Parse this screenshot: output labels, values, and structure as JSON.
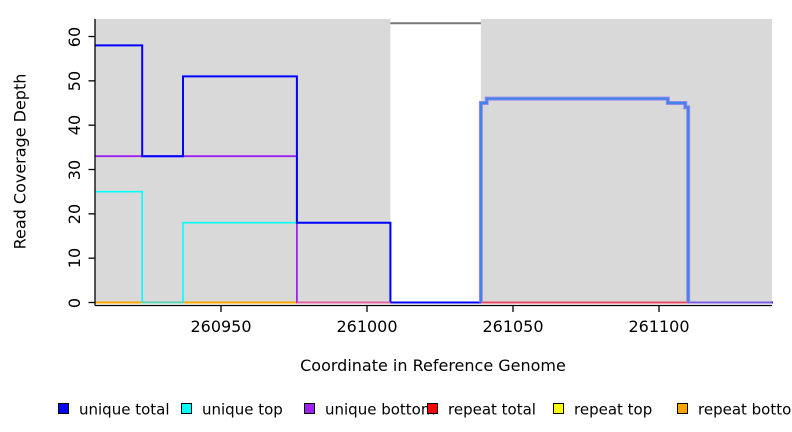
{
  "chart_data": {
    "type": "line",
    "subtype": "step-coverage-plot",
    "title": "",
    "xlabel": "Coordinate in Reference Genome",
    "ylabel": "Read Coverage Depth",
    "xlim": [
      260907,
      261139
    ],
    "ylim": [
      0,
      64
    ],
    "x_ticks": [
      260950,
      261000,
      261050,
      261100
    ],
    "y_ticks": [
      0,
      10,
      20,
      30,
      40,
      50,
      60
    ],
    "grid": false,
    "legend_position": "bottom",
    "background_shaded_regions": [
      {
        "from": 260907,
        "to": 261008
      },
      {
        "from": 261039,
        "to": 261139
      }
    ],
    "shade_color": "#d9d9d9",
    "gap_region": {
      "from": 261008,
      "to": 261039,
      "marker_y": 63,
      "marker_color": "#777777"
    },
    "series": [
      {
        "name": "unique total",
        "color": "#0000FF",
        "points": [
          [
            260907,
            58
          ],
          [
            260923,
            33
          ],
          [
            260937,
            51
          ],
          [
            260976,
            18
          ],
          [
            261008,
            0
          ],
          [
            261039,
            45
          ],
          [
            261041,
            46
          ],
          [
            261103,
            45
          ],
          [
            261109,
            44
          ],
          [
            261110,
            0
          ],
          [
            261139,
            0
          ]
        ]
      },
      {
        "name": "unique top",
        "color": "#00FFFF",
        "points": [
          [
            260907,
            25
          ],
          [
            260923,
            0
          ],
          [
            260937,
            18
          ],
          [
            261008,
            0
          ],
          [
            261139,
            0
          ]
        ]
      },
      {
        "name": "unique bottom",
        "color": "#A020F0",
        "points": [
          [
            260907,
            33
          ],
          [
            260976,
            0
          ],
          [
            261039,
            45
          ],
          [
            261041,
            46
          ],
          [
            261103,
            45
          ],
          [
            261109,
            44
          ],
          [
            261110,
            0
          ],
          [
            261139,
            0
          ]
        ]
      },
      {
        "name": "repeat total",
        "color": "#FF0000",
        "points": [
          [
            260907,
            0
          ],
          [
            261139,
            0
          ]
        ]
      },
      {
        "name": "repeat top",
        "color": "#FFFF00",
        "points": [
          [
            260907,
            0
          ],
          [
            261139,
            0
          ]
        ]
      },
      {
        "name": "repeat bottom",
        "color": "#FFA500",
        "points": [
          [
            260907,
            0
          ],
          [
            261008,
            0
          ]
        ]
      }
    ],
    "legend": [
      {
        "label": "unique total",
        "color": "#0000FF"
      },
      {
        "label": "unique top",
        "color": "#00FFFF"
      },
      {
        "label": "unique bottom",
        "color": "#A020F0"
      },
      {
        "label": "repeat total",
        "color": "#FF0000"
      },
      {
        "label": "repeat top",
        "color": "#FFFF00"
      },
      {
        "label": "repeat bottom",
        "color": "#FFA500"
      }
    ],
    "render_hints": {
      "draw_order": [
        "repeat top",
        "repeat total",
        "repeat bottom",
        "unique bottom",
        "unique top",
        "unique total"
      ],
      "line_widths": {
        "unique total": 2,
        "unique top": 1.6,
        "unique bottom": 1.8,
        "repeat total": 1.7,
        "repeat top": 1.6,
        "repeat bottom": 2
      },
      "baseline_blend_segments": [
        {
          "from": 260923,
          "to": 260937,
          "color": "#5ccfb0"
        },
        {
          "from": 260976,
          "to": 261008,
          "color": "#e060a0"
        },
        {
          "from": 261039,
          "to": 261110,
          "color": "#e8455f"
        },
        {
          "from": 261110,
          "to": 261139,
          "color": "#7a5ae0"
        }
      ],
      "right_plateau_overlay": {
        "color": "#4283eb",
        "fringe": "#9e8cec",
        "points": [
          [
            261039,
            45
          ],
          [
            261041,
            46
          ],
          [
            261103,
            45
          ],
          [
            261109,
            44
          ],
          [
            261110,
            44
          ]
        ]
      }
    }
  }
}
